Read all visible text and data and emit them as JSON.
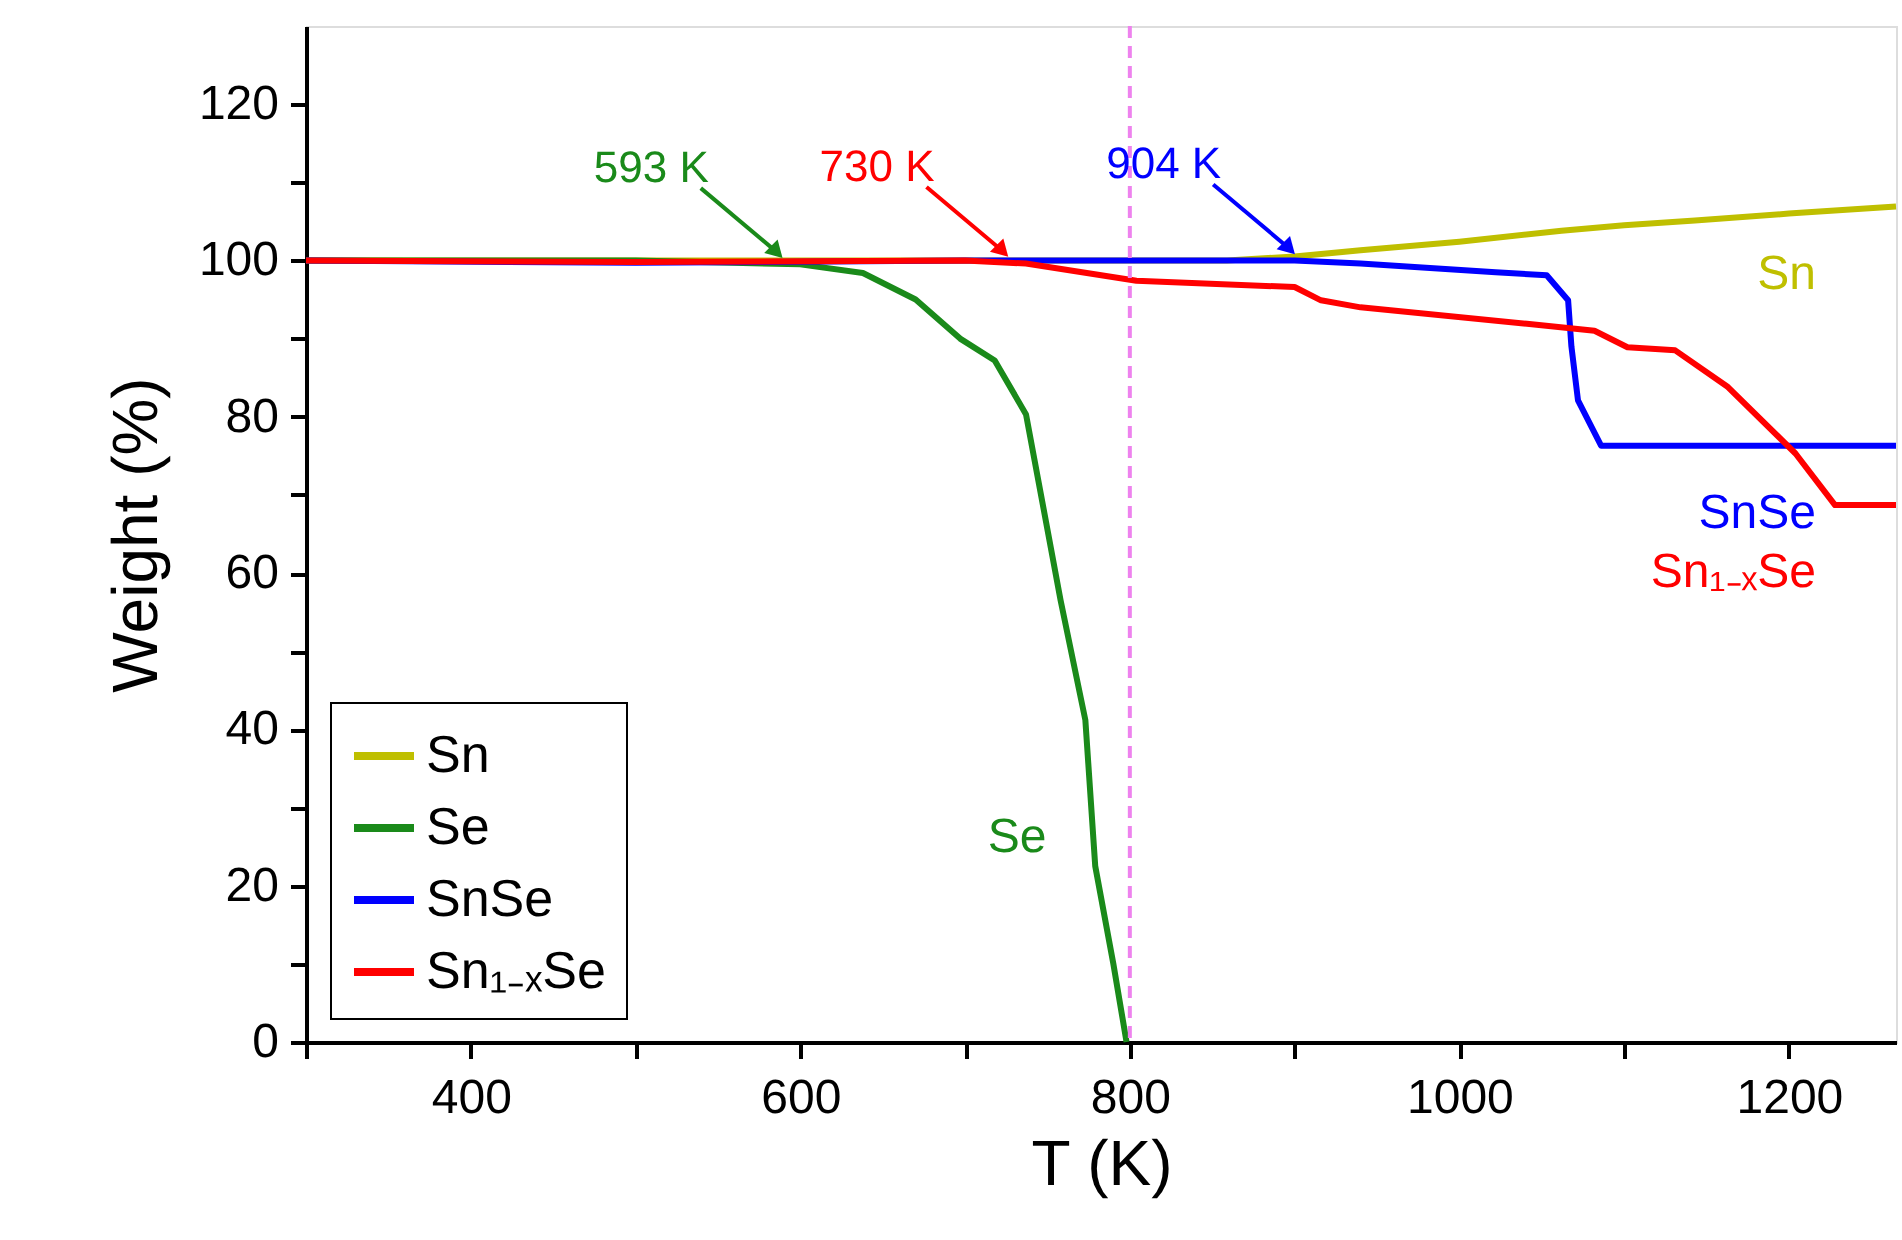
{
  "chart_data": {
    "type": "line",
    "xlabel": "T (K)",
    "ylabel": "Weight (%)",
    "xlim": [
      300,
      1265
    ],
    "ylim": [
      0,
      130
    ],
    "xticks": [
      {
        "value": 300,
        "label": null
      },
      400,
      {
        "value": 500,
        "label": null
      },
      600,
      {
        "value": 700,
        "label": null
      },
      800,
      {
        "value": 900,
        "label": null
      },
      1000,
      {
        "value": 1100,
        "label": null
      },
      1200
    ],
    "yticks": [
      0,
      {
        "value": 10,
        "label": null
      },
      20,
      {
        "value": 30,
        "label": null
      },
      40,
      {
        "value": 50,
        "label": null
      },
      60,
      {
        "value": 70,
        "label": null
      },
      80,
      {
        "value": 90,
        "label": null
      },
      100,
      {
        "value": 110,
        "label": null
      },
      120
    ],
    "legend": "bottom left",
    "grid": false,
    "marker": "none",
    "line_style": "solid",
    "series": [
      {
        "name": "Sn",
        "color": "#bfbf00",
        "x": [
          300,
          500,
          700,
          859,
          900,
          940,
          1000,
          1062,
          1100,
          1143,
          1200,
          1265
        ],
        "values": [
          100,
          100,
          100,
          100,
          100.5,
          101.3,
          102.4,
          103.8,
          104.5,
          105.1,
          106,
          106.9
        ]
      },
      {
        "name": "Se",
        "color": "#1a8a1a",
        "x": [
          300,
          500,
          600,
          638,
          670,
          697,
          718,
          737,
          758,
          773,
          779,
          790,
          798
        ],
        "values": [
          100,
          100,
          99.5,
          98.4,
          95,
          90,
          87.2,
          80.3,
          56.5,
          41.2,
          22.5,
          10,
          0
        ]
      },
      {
        "name": "SnSe",
        "color": "#0000ff",
        "x": [
          300,
          500,
          700,
          900,
          940,
          1022,
          1053,
          1066,
          1068,
          1072,
          1086,
          1150,
          1265
        ],
        "values": [
          100,
          99.7,
          100,
          100,
          99.6,
          98.5,
          98.1,
          94.9,
          89,
          82.1,
          76.3,
          76.3,
          76.3
        ]
      },
      {
        "name": "Sn₁₋ₓSe",
        "color": "#ff0000",
        "x": [
          300,
          500,
          700,
          737,
          804,
          900,
          916,
          940,
          1041,
          1082,
          1102,
          1131,
          1163,
          1204,
          1228,
          1265
        ],
        "values": [
          100,
          99.8,
          100,
          99.6,
          97.4,
          96.6,
          94.9,
          94,
          91.9,
          91,
          88.9,
          88.5,
          83.8,
          75.3,
          68.7,
          68.7
        ]
      }
    ],
    "ref_lines": [
      {
        "axis": "x",
        "value": 800,
        "color": "#ee82ee",
        "line_style": "dashed"
      }
    ],
    "annotations": [
      {
        "text": "593 K",
        "x": 593,
        "y": 99.53
      },
      {
        "text": "730 K",
        "x": 730,
        "y": 99.68
      },
      {
        "text": "904 K",
        "x": 904,
        "y": 100
      }
    ]
  }
}
